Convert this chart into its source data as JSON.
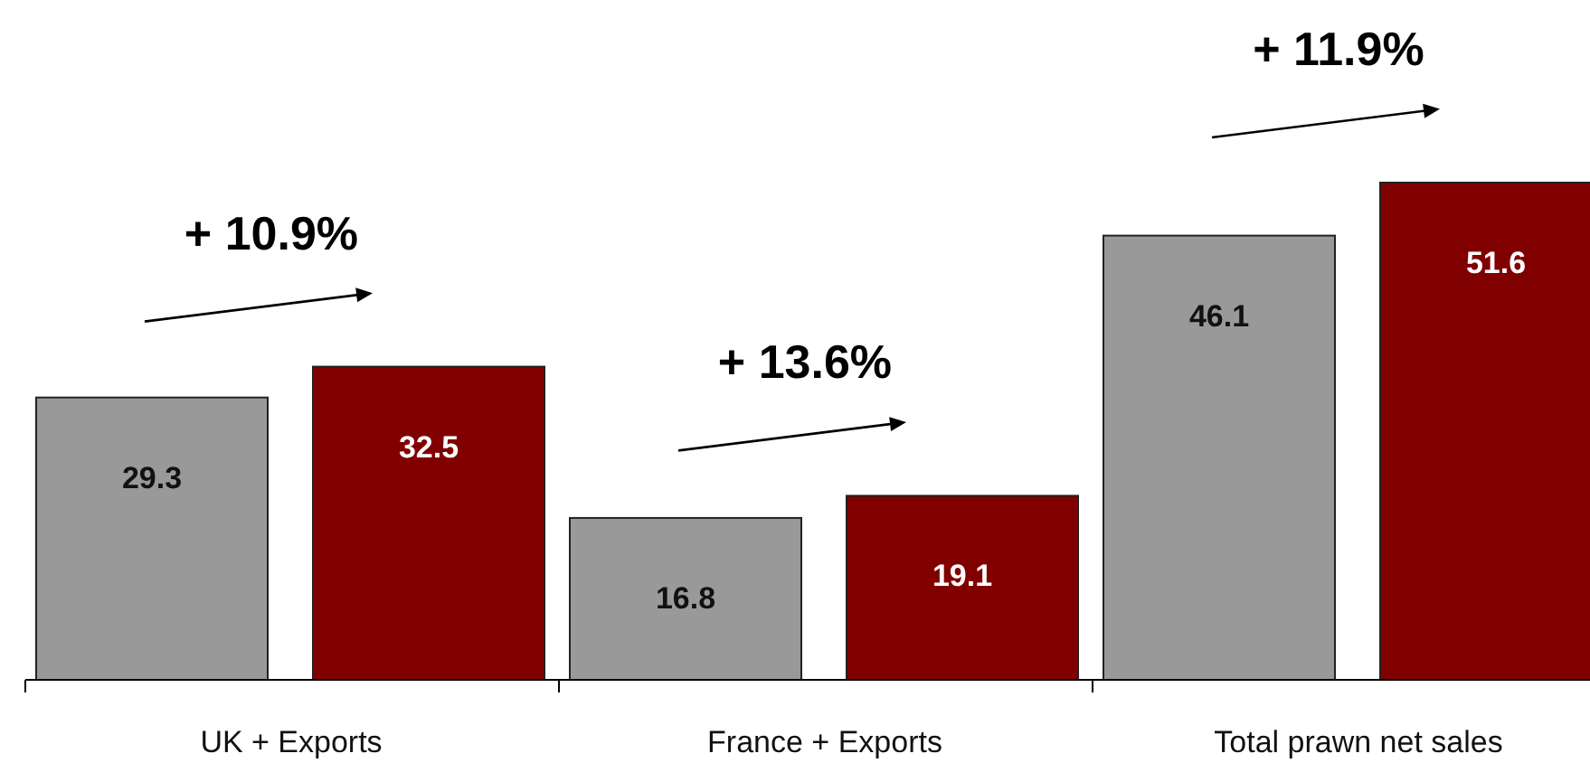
{
  "chart_data": {
    "type": "bar",
    "categories": [
      "UK + Exports",
      "France + Exports",
      "Total prawn net sales"
    ],
    "series": [
      {
        "color": "#999999",
        "values": [
          29.3,
          16.8,
          46.1
        ]
      },
      {
        "color": "#800000",
        "values": [
          32.5,
          19.1,
          51.6
        ]
      }
    ],
    "data_labels": true,
    "annotations": [
      "+ 10.9%",
      "+ 13.6%",
      "+ 11.9%"
    ]
  }
}
